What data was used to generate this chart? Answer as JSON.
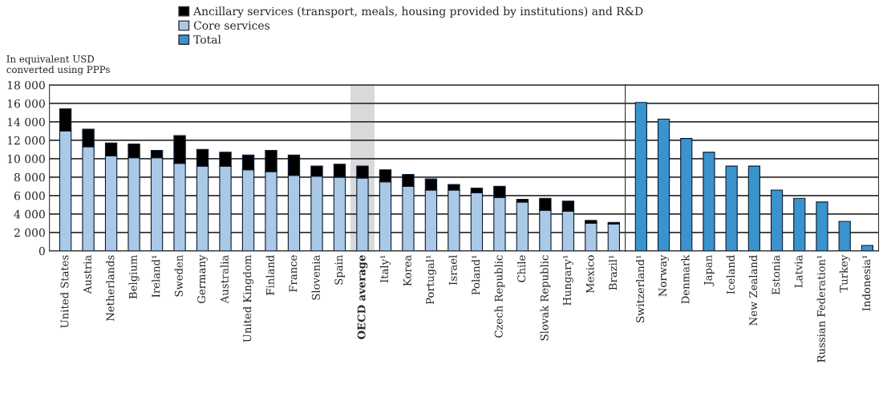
{
  "chart_data": [
    {
      "type": "bar",
      "stacked": true,
      "ylabel": "In equivalent USD\nconverted using PPPs",
      "categories": [
        "United States",
        "Austria",
        "Netherlands",
        "Belgium",
        "Ireland¹",
        "Sweden",
        "Germany",
        "Australia",
        "United Kingdom",
        "Finland",
        "France",
        "Slovenia",
        "Spain",
        "OECD average",
        "Italy¹",
        "Korea",
        "Portugal¹",
        "Israel",
        "Poland¹",
        "Czech Republic",
        "Chile",
        "Slovak Republic",
        "Hungary¹",
        "Mexico",
        "Brazil¹"
      ],
      "series": [
        {
          "name": "Core services",
          "color": "#a9c9e6",
          "values": [
            13000,
            11300,
            10300,
            10100,
            10100,
            9500,
            9200,
            9200,
            8800,
            8600,
            8200,
            8100,
            8000,
            7900,
            7500,
            7000,
            6600,
            6600,
            6300,
            5800,
            5300,
            4400,
            4300,
            3000,
            2900
          ]
        },
        {
          "name": "Ancillary services (transport, meals, housing provided by institutions) and R&D",
          "color": "#000000",
          "values": [
            2400,
            1900,
            1400,
            1500,
            800,
            3000,
            1800,
            1500,
            1600,
            2300,
            2200,
            1100,
            1400,
            1300,
            1300,
            1300,
            1200,
            600,
            500,
            1200,
            300,
            1300,
            1100,
            300,
            200
          ]
        }
      ],
      "ylim": [
        0,
        18000
      ],
      "yticks": [
        {
          "value": 0,
          "label": "0"
        },
        {
          "value": 2000,
          "label": "2 000"
        },
        {
          "value": 4000,
          "label": "4 000"
        },
        {
          "value": 6000,
          "label": "6 000"
        },
        {
          "value": 8000,
          "label": "8 000"
        },
        {
          "value": 10000,
          "label": "10 000"
        },
        {
          "value": 12000,
          "label": "12 000"
        },
        {
          "value": 14000,
          "label": "14 000"
        },
        {
          "value": 16000,
          "label": "16 000"
        },
        {
          "value": 18000,
          "label": "18 000"
        }
      ],
      "bands": [
        {
          "axis": "x",
          "from": "OECD average",
          "to": "OECD average",
          "color": "#d9d9d9"
        }
      ],
      "grid": "y",
      "legend": "top"
    },
    {
      "type": "bar",
      "categories": [
        "Switzerland¹",
        "Norway",
        "Denmark",
        "Japan",
        "Iceland",
        "New Zealand",
        "Estonia",
        "Latvia",
        "Russian Federation¹",
        "Turkey",
        "Indonesia¹"
      ],
      "series": [
        {
          "name": "Total",
          "color": "#3a93cc",
          "values": [
            16100,
            14300,
            12200,
            10700,
            9200,
            9200,
            6600,
            5700,
            5300,
            3200,
            600
          ]
        }
      ],
      "ylim": [
        0,
        18000
      ],
      "yticks": [
        0,
        2000,
        4000,
        6000,
        8000,
        10000,
        12000,
        14000,
        16000,
        18000
      ],
      "tick_labels": "x",
      "grid": "y",
      "legend": "top"
    }
  ]
}
